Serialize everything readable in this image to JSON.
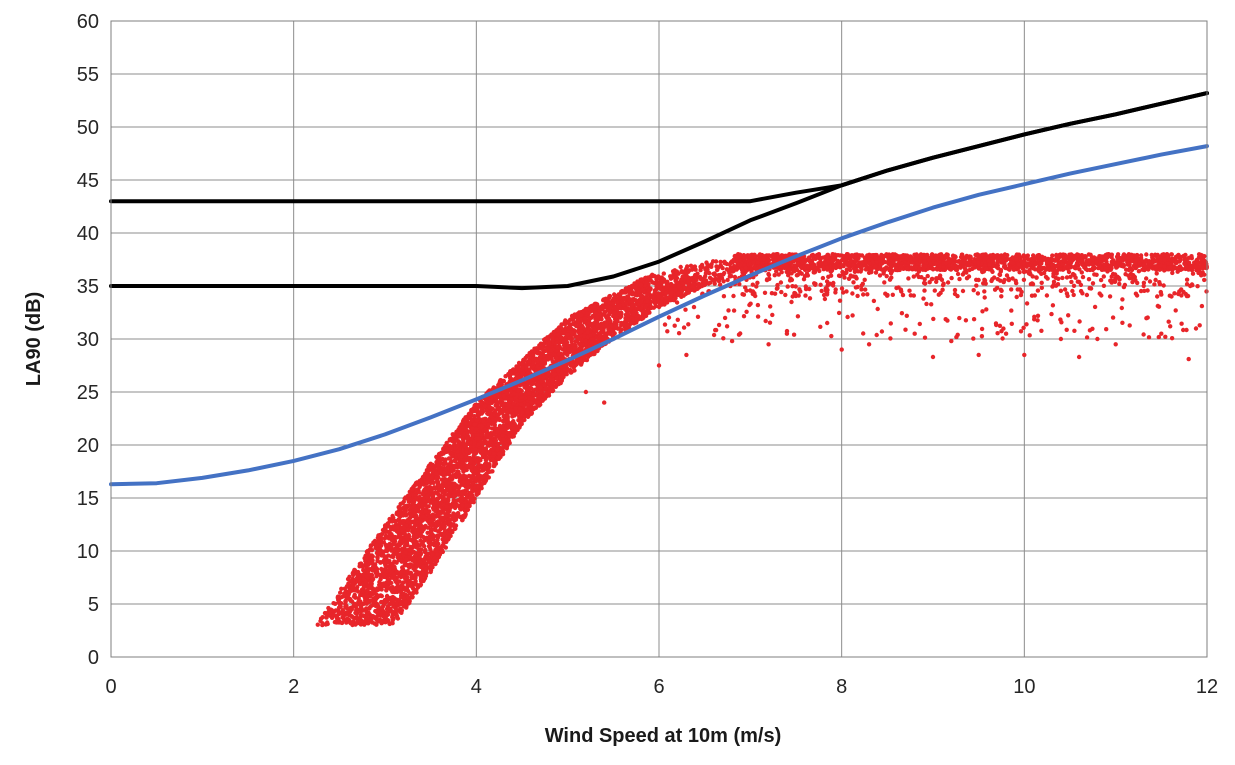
{
  "chart_data": {
    "type": "scatter",
    "title": "",
    "xlabel": "Wind Speed at 10m (m/s)",
    "ylabel": "LA90 (dB)",
    "xlim": [
      0,
      12
    ],
    "ylim": [
      0,
      60
    ],
    "x_ticks": [
      "0",
      "2",
      "4",
      "6",
      "8",
      "10",
      "12"
    ],
    "y_ticks": [
      "0",
      "5",
      "10",
      "15",
      "20",
      "25",
      "30",
      "35",
      "40",
      "45",
      "50",
      "55",
      "60"
    ],
    "grid": true,
    "legend": "none",
    "series": [
      {
        "type": "line",
        "color": "#000000",
        "points": [
          [
            0,
            43
          ],
          [
            1,
            43
          ],
          [
            2,
            43
          ],
          [
            3,
            43
          ],
          [
            4,
            43
          ],
          [
            5,
            43
          ],
          [
            6,
            43
          ],
          [
            7,
            43
          ],
          [
            7.5,
            43.8
          ],
          [
            8,
            44.5
          ],
          [
            8.5,
            45.9
          ],
          [
            9,
            47.1
          ],
          [
            9.5,
            48.2
          ],
          [
            10,
            49.3
          ],
          [
            10.5,
            50.3
          ],
          [
            11,
            51.2
          ],
          [
            11.5,
            52.2
          ],
          [
            12,
            53.2
          ]
        ]
      },
      {
        "type": "line",
        "color": "#000000",
        "points": [
          [
            0,
            35
          ],
          [
            1,
            35
          ],
          [
            2,
            35
          ],
          [
            3,
            35
          ],
          [
            4,
            35
          ],
          [
            4.5,
            34.8
          ],
          [
            5,
            35
          ],
          [
            5.5,
            35.9
          ],
          [
            6,
            37.3
          ],
          [
            6.5,
            39.2
          ],
          [
            7,
            41.2
          ],
          [
            7.5,
            42.8
          ],
          [
            8,
            44.5
          ],
          [
            8.5,
            45.9
          ],
          [
            9,
            47.1
          ],
          [
            9.5,
            48.2
          ],
          [
            10,
            49.3
          ],
          [
            10.5,
            50.3
          ],
          [
            11,
            51.2
          ],
          [
            11.5,
            52.2
          ],
          [
            12,
            53.2
          ]
        ]
      },
      {
        "type": "line",
        "color": "#4472c4",
        "points": [
          [
            0,
            16.3
          ],
          [
            0.5,
            16.4
          ],
          [
            1,
            16.9
          ],
          [
            1.5,
            17.6
          ],
          [
            2,
            18.5
          ],
          [
            2.5,
            19.6
          ],
          [
            3,
            21
          ],
          [
            3.5,
            22.6
          ],
          [
            4,
            24.3
          ],
          [
            4.5,
            26.1
          ],
          [
            5,
            28
          ],
          [
            5.5,
            30
          ],
          [
            6,
            32.1
          ],
          [
            6.5,
            34.1
          ],
          [
            7,
            36
          ],
          [
            7.5,
            37.8
          ],
          [
            8,
            39.5
          ],
          [
            8.5,
            41
          ],
          [
            9,
            42.4
          ],
          [
            9.5,
            43.6
          ],
          [
            10,
            44.6
          ],
          [
            10.5,
            45.6
          ],
          [
            11,
            46.5
          ],
          [
            11.5,
            47.4
          ],
          [
            12,
            48.2
          ]
        ]
      },
      {
        "type": "scatter",
        "color": "#e8252a",
        "description_points": "dense band rising from (2.25..3.1, 3) through (4..4.6, 25) and (5..5.5, 32) to a plateau at 36-38 dB from x=7 to x=12, with sparse outliers down to 28 dB",
        "upper_edge": [
          [
            2.25,
            3
          ],
          [
            3,
            12.5
          ],
          [
            4,
            24
          ],
          [
            5,
            32
          ],
          [
            6,
            36.5
          ],
          [
            7,
            38
          ],
          [
            12,
            38
          ]
        ],
        "lower_edge": [
          [
            3.1,
            3
          ],
          [
            3.5,
            8
          ],
          [
            4,
            15
          ],
          [
            4.5,
            22
          ],
          [
            5,
            26.5
          ],
          [
            5.5,
            30
          ],
          [
            6,
            33
          ],
          [
            6.5,
            35
          ],
          [
            7,
            36
          ],
          [
            12,
            35
          ]
        ],
        "outliers": [
          [
            4.5,
            24.5
          ],
          [
            5.2,
            25
          ],
          [
            5.4,
            24
          ],
          [
            6,
            27.5
          ],
          [
            6.3,
            28.5
          ],
          [
            6.8,
            29.8
          ],
          [
            7.2,
            29.5
          ],
          [
            7.4,
            30.5
          ],
          [
            8,
            29
          ],
          [
            8.3,
            29.5
          ],
          [
            9,
            28.3
          ],
          [
            9.5,
            28.5
          ],
          [
            9.8,
            30.5
          ],
          [
            10,
            28.5
          ],
          [
            10.4,
            30
          ],
          [
            10.6,
            28.3
          ],
          [
            10.8,
            30
          ],
          [
            11,
            29.5
          ],
          [
            11.5,
            30.5
          ],
          [
            11.8,
            28.1
          ],
          [
            8.8,
            30.5
          ],
          [
            9.2,
            29.8
          ]
        ]
      }
    ]
  }
}
